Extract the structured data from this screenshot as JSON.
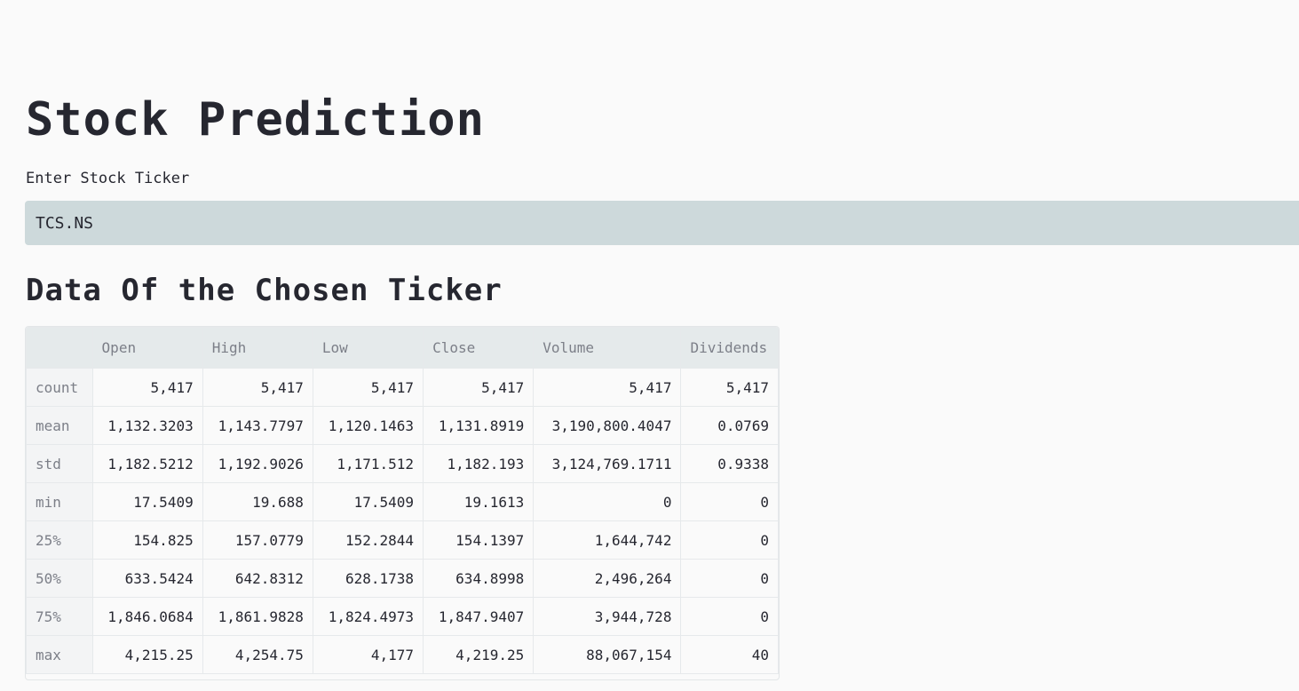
{
  "page": {
    "title": "Stock Prediction",
    "input_label": "Enter Stock Ticker",
    "ticker_value": "TCS.NS",
    "section_title": "Data Of the Chosen Ticker"
  },
  "table": {
    "columns": [
      "",
      "Open",
      "High",
      "Low",
      "Close",
      "Volume",
      "Dividends"
    ],
    "rows": [
      {
        "label": "count",
        "cells": [
          "5,417",
          "5,417",
          "5,417",
          "5,417",
          "5,417",
          "5,417"
        ]
      },
      {
        "label": "mean",
        "cells": [
          "1,132.3203",
          "1,143.7797",
          "1,120.1463",
          "1,131.8919",
          "3,190,800.4047",
          "0.0769"
        ]
      },
      {
        "label": "std",
        "cells": [
          "1,182.5212",
          "1,192.9026",
          "1,171.512",
          "1,182.193",
          "3,124,769.1711",
          "0.9338"
        ]
      },
      {
        "label": "min",
        "cells": [
          "17.5409",
          "19.688",
          "17.5409",
          "19.1613",
          "0",
          "0"
        ]
      },
      {
        "label": "25%",
        "cells": [
          "154.825",
          "157.0779",
          "152.2844",
          "154.1397",
          "1,644,742",
          "0"
        ]
      },
      {
        "label": "50%",
        "cells": [
          "633.5424",
          "642.8312",
          "628.1738",
          "634.8998",
          "2,496,264",
          "0"
        ]
      },
      {
        "label": "75%",
        "cells": [
          "1,846.0684",
          "1,861.9828",
          "1,824.4973",
          "1,847.9407",
          "3,944,728",
          "0"
        ]
      },
      {
        "label": "max",
        "cells": [
          "4,215.25",
          "4,254.75",
          "4,177",
          "4,219.25",
          "88,067,154",
          "40"
        ]
      }
    ]
  }
}
